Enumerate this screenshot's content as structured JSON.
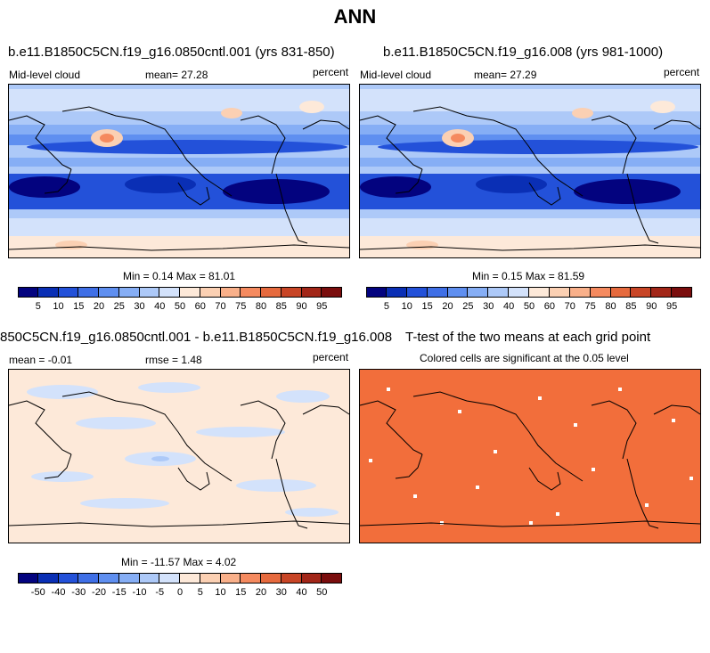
{
  "title": "ANN",
  "panels": [
    {
      "title": "b.e11.B1850C5CN.f19_g16.0850cntl.001 (yrs 831-850)",
      "left_label": "Mid-level cloud",
      "center_label": "mean=  27.28",
      "right_label": "percent",
      "minmax": "Min =   0.14 Max =  81.01"
    },
    {
      "title": "b.e11.B1850C5CN.f19_g16.008 (yrs 981-1000)",
      "left_label": "Mid-level cloud",
      "center_label": "mean=  27.29",
      "right_label": "percent",
      "minmax": "Min =   0.15 Max =  81.59"
    },
    {
      "title": "850C5CN.f19_g16.0850cntl.001 - b.e11.B1850C5CN.f19_g16.008",
      "left_label": "mean =  -0.01",
      "center_label": "rmse =   1.48",
      "right_label": "percent",
      "minmax": "Min = -11.57 Max =   4.02"
    },
    {
      "title": "T-test of the two means at each grid point",
      "subtitle": "Colored cells are significant at the 0.05 level"
    }
  ],
  "colorbars": {
    "absolute": {
      "labels": [
        "5",
        "10",
        "15",
        "20",
        "25",
        "30",
        "40",
        "50",
        "60",
        "70",
        "75",
        "80",
        "85",
        "90",
        "95"
      ],
      "colors": [
        "#03037f",
        "#0a2fb5",
        "#2351d9",
        "#3f6fe6",
        "#5f8ff0",
        "#86aef5",
        "#adc9f8",
        "#d3e2fb",
        "#fde9d9",
        "#fbd0b3",
        "#f9b08a",
        "#f58a5f",
        "#e66a3e",
        "#c84526",
        "#a22618",
        "#7a0d0d"
      ]
    },
    "difference": {
      "labels": [
        "-50",
        "-40",
        "-30",
        "-20",
        "-15",
        "-10",
        "-5",
        "0",
        "5",
        "10",
        "15",
        "20",
        "30",
        "40",
        "50"
      ],
      "colors": [
        "#03037f",
        "#0a2fb5",
        "#2351d9",
        "#3f6fe6",
        "#5f8ff0",
        "#86aef5",
        "#adc9f8",
        "#d3e2fb",
        "#fde9d9",
        "#fbd0b3",
        "#f9b08a",
        "#f58a5f",
        "#e66a3e",
        "#c84526",
        "#a22618",
        "#7a0d0d"
      ]
    }
  },
  "colors": {
    "ttest_fill": "#f26e3b",
    "diff_background": "#fde9d9",
    "diff_negative": "#d3e2fb"
  }
}
